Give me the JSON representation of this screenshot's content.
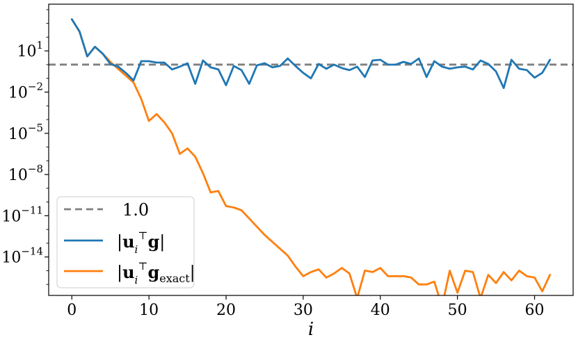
{
  "chart_data": {
    "type": "line",
    "xlabel": "i",
    "ylabel": "",
    "title": "",
    "xlim": [
      -3,
      65
    ],
    "ylim_log10": [
      -16.8,
      4.4
    ],
    "yscale": "log",
    "xticks": [
      0,
      10,
      20,
      30,
      40,
      50,
      60
    ],
    "xtick_labels": [
      "0",
      "10",
      "20",
      "30",
      "40",
      "50",
      "60"
    ],
    "yticks_log10": [
      1,
      -2,
      -5,
      -8,
      -11,
      -14
    ],
    "ytick_labels": [
      {
        "base": "10",
        "exp": "1"
      },
      {
        "base": "10",
        "exp": "−2"
      },
      {
        "base": "10",
        "exp": "−5"
      },
      {
        "base": "10",
        "exp": "−8"
      },
      {
        "base": "10",
        "exp": "−11"
      },
      {
        "base": "10",
        "exp": "−14"
      }
    ],
    "grid": false,
    "legend_position": "bottom-left",
    "reference_line": {
      "y": 1.0,
      "label": "1.0",
      "color": "#7f7f7f",
      "style": "dashed"
    },
    "series": [
      {
        "name": "|uᵢᵀg|",
        "color": "#1f77b4",
        "x": [
          0,
          1,
          2,
          3,
          4,
          5,
          6,
          7,
          8,
          9,
          10,
          11,
          12,
          13,
          14,
          15,
          16,
          17,
          18,
          19,
          20,
          21,
          22,
          23,
          24,
          25,
          26,
          27,
          28,
          29,
          30,
          31,
          32,
          33,
          34,
          35,
          36,
          37,
          38,
          39,
          40,
          41,
          42,
          43,
          44,
          45,
          46,
          47,
          48,
          49,
          50,
          51,
          52,
          53,
          54,
          55,
          56,
          57,
          58,
          59,
          60,
          61,
          62
        ],
        "log10_y": [
          3.3,
          2.4,
          0.6,
          1.3,
          0.8,
          0.05,
          -0.15,
          -0.6,
          -1.15,
          0.25,
          0.25,
          0.15,
          0.15,
          -0.35,
          -0.15,
          0.1,
          -1.4,
          0.3,
          -0.2,
          -0.35,
          -1.5,
          -0.1,
          -0.4,
          -1.4,
          -0.05,
          0.1,
          -0.2,
          -0.1,
          0.45,
          -0.1,
          -0.6,
          -1.0,
          0.05,
          -0.3,
          0.0,
          -0.25,
          -0.4,
          -0.15,
          -0.9,
          0.3,
          0.35,
          0.0,
          0.0,
          0.2,
          0.05,
          0.45,
          -0.9,
          0.25,
          -0.15,
          -0.3,
          -0.2,
          -0.15,
          -0.35,
          0.3,
          0.05,
          -0.5,
          -1.7,
          0.35,
          -0.3,
          -0.4,
          -0.95,
          -0.6,
          0.35
        ]
      },
      {
        "name": "|uᵢᵀg_exact|",
        "color": "#ff7f0e",
        "x": [
          0,
          1,
          2,
          3,
          4,
          5,
          6,
          7,
          8,
          9,
          10,
          11,
          12,
          13,
          14,
          15,
          16,
          17,
          18,
          19,
          20,
          21,
          22,
          23,
          24,
          25,
          26,
          27,
          28,
          29,
          30,
          31,
          32,
          33,
          34,
          35,
          36,
          37,
          38,
          39,
          40,
          41,
          42,
          43,
          44,
          45,
          46,
          47,
          48,
          49,
          50,
          51,
          52,
          53,
          54,
          55,
          56,
          57,
          58,
          59,
          60,
          61,
          62
        ],
        "log10_y": [
          3.3,
          2.4,
          0.6,
          1.3,
          0.8,
          0.2,
          -0.3,
          -0.8,
          -1.3,
          -2.5,
          -4.1,
          -3.6,
          -4.2,
          -5.0,
          -6.5,
          -6.1,
          -6.7,
          -7.9,
          -9.3,
          -9.2,
          -10.3,
          -10.4,
          -10.6,
          -11.2,
          -11.8,
          -12.4,
          -12.9,
          -13.4,
          -13.9,
          -14.7,
          -15.4,
          -15.1,
          -14.9,
          -15.5,
          -15.2,
          -14.8,
          -15.2,
          -17.0,
          -14.99,
          -15.1,
          -14.8,
          -15.4,
          -15.4,
          -15.4,
          -15.5,
          -16.0,
          -16.0,
          -15.8,
          -17.6,
          -15.0,
          -16.6,
          -15.0,
          -15.1,
          -17.0,
          -15.3,
          -15.9,
          -15.1,
          -15.7,
          -15.0,
          -15.4,
          -15.5,
          -16.5,
          -15.3
        ]
      }
    ],
    "legend": {
      "items": [
        {
          "kind": "reference",
          "label": "1.0"
        },
        {
          "kind": "series",
          "index": 0
        },
        {
          "kind": "series",
          "index": 1
        }
      ]
    }
  }
}
